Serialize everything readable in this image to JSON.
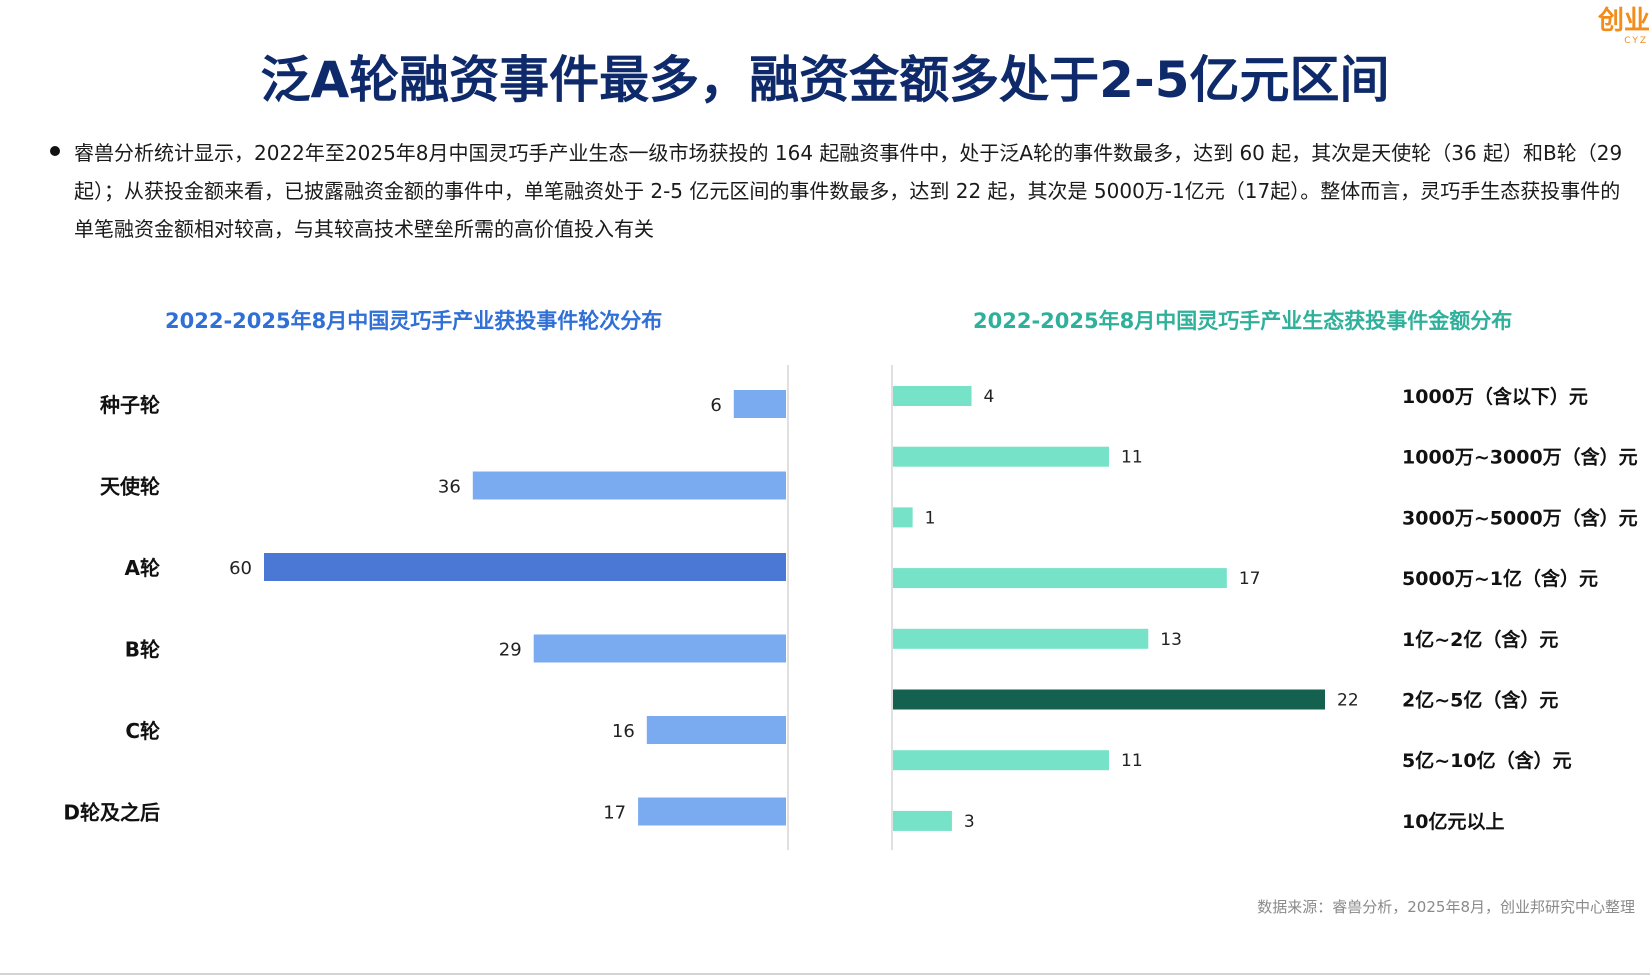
{
  "header": {
    "title": "泛A轮融资事件最多，融资金额多处于2-5亿元区间",
    "logo_text": "创业",
    "logo_sub": "CYZ"
  },
  "summary": {
    "text": "睿兽分析统计显示，2022年至2025年8月中国灵巧手产业生态一级市场获投的 164 起融资事件中，处于泛A轮的事件数最多，达到 60 起，其次是天使轮（36 起）和B轮（29 起）；从获投金额来看，已披露融资金额的事件中，单笔融资处于 2-5 亿元区间的事件数最多，达到 22 起，其次是 5000万-1亿元（17起）。整体而言，灵巧手生态获投事件的单笔融资金额相对较高，与其较高技术壁垒所需的高价值投入有关"
  },
  "colors": {
    "left_bar": "#7aabf0",
    "left_highlight": "#4a78d4",
    "right_bar": "#76e2c8",
    "right_highlight": "#13614e"
  },
  "chart_data": [
    {
      "type": "bar",
      "orientation": "horizontal",
      "title": "2022-2025年8月中国灵巧手产业获投事件轮次分布",
      "categories": [
        "种子轮",
        "天使轮",
        "A轮",
        "B轮",
        "C轮",
        "D轮及之后"
      ],
      "values": [
        6,
        36,
        60,
        29,
        16,
        17
      ],
      "highlight_index": 2,
      "data_labels": true,
      "grid": false,
      "legend": "none"
    },
    {
      "type": "bar",
      "orientation": "horizontal",
      "title": "2022-2025年8月中国灵巧手产业生态获投事件金额分布",
      "categories": [
        "1000万（含以下）元",
        "1000万~3000万（含）元",
        "3000万~5000万（含）元",
        "5000万~1亿（含）元",
        "1亿~2亿（含）元",
        "2亿~5亿（含）元",
        "5亿~10亿（含）元",
        "10亿元以上"
      ],
      "values": [
        4,
        11,
        1,
        17,
        13,
        22,
        11,
        3
      ],
      "highlight_index": 5,
      "data_labels": true,
      "grid": false,
      "legend": "none"
    }
  ],
  "footer": {
    "source": "数据来源：睿兽分析，2025年8月，创业邦研究中心整理"
  }
}
